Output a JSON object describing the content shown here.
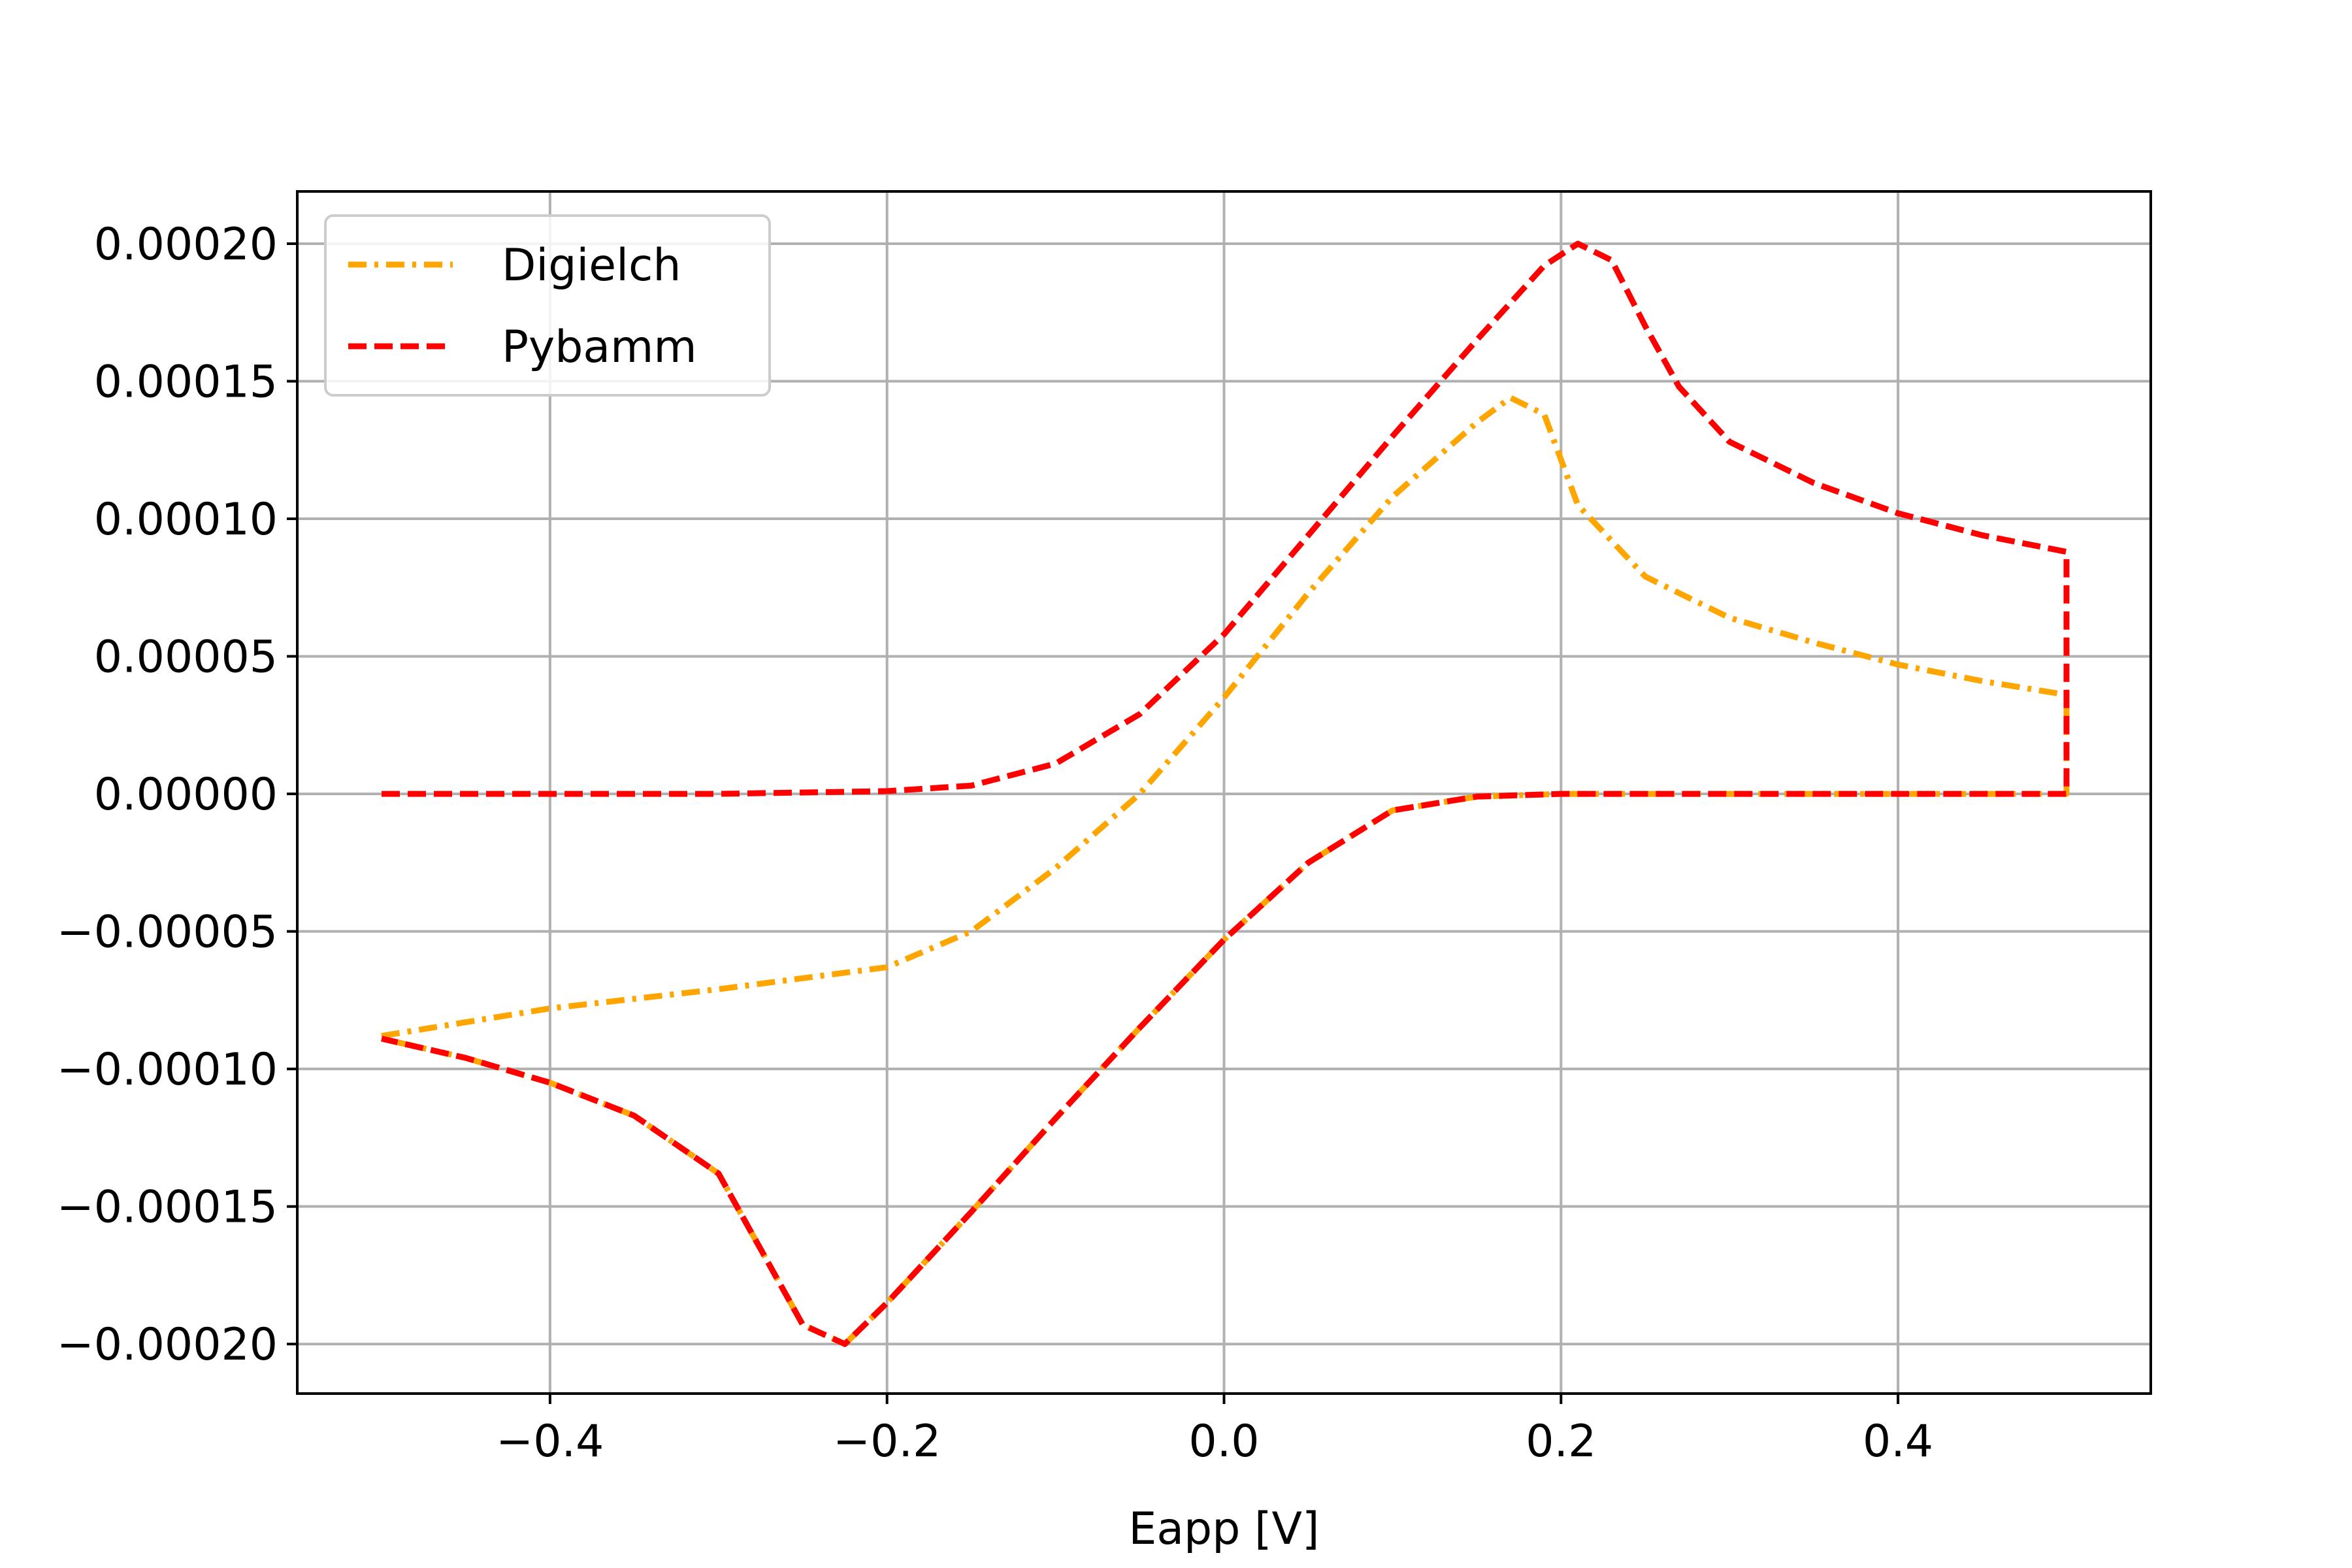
{
  "chart_data": {
    "type": "line",
    "title": "",
    "xlabel": "Eapp [V]",
    "ylabel": "",
    "xlim": [
      -0.55,
      0.55
    ],
    "ylim": [
      -0.000218,
      0.000219
    ],
    "grid": true,
    "legend_position": "top-left",
    "x_ticks": [
      -0.4,
      -0.2,
      0.0,
      0.2,
      0.4
    ],
    "x_tick_labels": [
      "−0.4",
      "−0.2",
      "0.0",
      "0.2",
      "0.4"
    ],
    "y_ticks": [
      0.0002,
      0.00015,
      0.0001,
      5e-05,
      0.0,
      -5e-05,
      -0.0001,
      -0.00015,
      -0.0002
    ],
    "y_tick_labels": [
      "0.00020",
      "0.00015",
      "0.00010",
      "0.00005",
      "0.00000",
      "−0.00005",
      "−0.00010",
      "−0.00015",
      "−0.00020"
    ],
    "series": [
      {
        "name": "Digielch",
        "color": "#ffa500",
        "dash": "dashdot",
        "x": [
          -0.5,
          -0.4,
          -0.3,
          -0.2,
          -0.15,
          -0.1,
          -0.05,
          0.0,
          0.05,
          0.1,
          0.15,
          0.17,
          0.19,
          0.21,
          0.25,
          0.3,
          0.35,
          0.4,
          0.45,
          0.5,
          0.5,
          0.45,
          0.4,
          0.35,
          0.3,
          0.25,
          0.2,
          0.15,
          0.1,
          0.05,
          0.0,
          -0.05,
          -0.1,
          -0.15,
          -0.2,
          -0.225,
          -0.25,
          -0.28,
          -0.3,
          -0.35,
          -0.4,
          -0.45,
          -0.5
        ],
        "y": [
          -8.8e-05,
          -7.8e-05,
          -7.1e-05,
          -6.3e-05,
          -5e-05,
          -2.7e-05,
          0.0,
          3.5e-05,
          7.3e-05,
          0.000108,
          0.000135,
          0.000144,
          0.000138,
          0.000105,
          7.9e-05,
          6.4e-05,
          5.5e-05,
          4.7e-05,
          4.1e-05,
          3.6e-05,
          0.0,
          0.0,
          0.0,
          0.0,
          0.0,
          0.0,
          0.0,
          -1e-06,
          -6e-06,
          -2.5e-05,
          -5.3e-05,
          -8.5e-05,
          -0.000118,
          -0.000152,
          -0.000185,
          -0.0002,
          -0.000193,
          -0.00016,
          -0.000138,
          -0.000117,
          -0.000105,
          -9.6e-05,
          -8.9e-05
        ]
      },
      {
        "name": "Pybamm",
        "color": "#ff0000",
        "dash": "dashed",
        "x": [
          -0.5,
          -0.5,
          -0.4,
          -0.3,
          -0.2,
          -0.15,
          -0.1,
          -0.05,
          0.0,
          0.05,
          0.1,
          0.15,
          0.19,
          0.21,
          0.23,
          0.25,
          0.27,
          0.3,
          0.35,
          0.4,
          0.45,
          0.5,
          0.5,
          0.45,
          0.4,
          0.35,
          0.3,
          0.25,
          0.2,
          0.15,
          0.1,
          0.05,
          0.0,
          -0.05,
          -0.1,
          -0.15,
          -0.2,
          -0.225,
          -0.25,
          -0.28,
          -0.3,
          -0.35,
          -0.4,
          -0.45,
          -0.5
        ],
        "y": [
          0.0,
          0.0,
          0.0,
          0.0,
          1e-06,
          3e-06,
          1.1e-05,
          2.9e-05,
          5.8e-05,
          9.4e-05,
          0.00013,
          0.000165,
          0.000192,
          0.0002,
          0.000194,
          0.00017,
          0.000148,
          0.000128,
          0.000113,
          0.000102,
          9.4e-05,
          8.8e-05,
          0.0,
          0.0,
          0.0,
          0.0,
          0.0,
          0.0,
          0.0,
          -1e-06,
          -6e-06,
          -2.5e-05,
          -5.3e-05,
          -8.5e-05,
          -0.000118,
          -0.000152,
          -0.000185,
          -0.0002,
          -0.000193,
          -0.00016,
          -0.000138,
          -0.000117,
          -0.000105,
          -9.6e-05,
          -8.9e-05
        ]
      }
    ]
  }
}
